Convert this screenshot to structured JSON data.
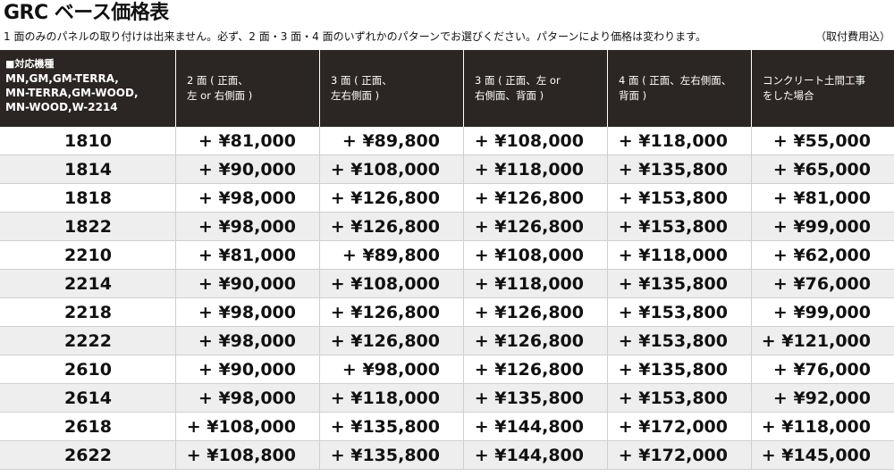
{
  "title": "GRC ベース価格表",
  "note": "1 面のみのパネルの取り付けは出来ません。必ず、2 面・3 面・4 面のいずれかのパターンでお選びください。パターンにより価格は変わります。",
  "note_right": "（取付費用込）",
  "headers": [
    [
      "■対応機種",
      "MN,GM,GM-TERRA,",
      "MN-TERRA,GM-WOOD,",
      "MN-WOOD,W-2214"
    ],
    [
      "2 面 ( 正面、",
      "左 or 右側面 )"
    ],
    [
      "3 面 ( 正面、",
      "左右側面 )"
    ],
    [
      "3 面 ( 正面、左 or",
      "右側面、背面 )"
    ],
    [
      "4 面 ( 正面、左右側面、",
      "背面 )"
    ],
    [
      "コンクリート土間工事",
      "をした場合"
    ]
  ],
  "rows": [
    [
      "1810",
      "+ ¥81,000",
      "+ ¥89,800",
      "+ ¥108,000",
      "+ ¥118,000",
      "+ ¥55,000"
    ],
    [
      "1814",
      "+ ¥90,000",
      "+ ¥108,000",
      "+ ¥118,000",
      "+ ¥135,800",
      "+ ¥65,000"
    ],
    [
      "1818",
      "+ ¥98,000",
      "+ ¥126,800",
      "+ ¥126,800",
      "+ ¥153,800",
      "+ ¥81,000"
    ],
    [
      "1822",
      "+ ¥98,000",
      "+ ¥126,800",
      "+ ¥126,800",
      "+ ¥153,800",
      "+ ¥99,000"
    ],
    [
      "2210",
      "+ ¥81,000",
      "+ ¥89,800",
      "+ ¥108,000",
      "+ ¥118,000",
      "+ ¥62,000"
    ],
    [
      "2214",
      "+ ¥90,000",
      "+ ¥108,000",
      "+ ¥118,000",
      "+ ¥135,800",
      "+ ¥76,000"
    ],
    [
      "2218",
      "+ ¥98,000",
      "+ ¥126,800",
      "+ ¥126,800",
      "+ ¥153,800",
      "+ ¥99,000"
    ],
    [
      "2222",
      "+ ¥98,000",
      "+ ¥126,800",
      "+ ¥126,800",
      "+ ¥153,800",
      "+ ¥121,000"
    ],
    [
      "2610",
      "+ ¥90,000",
      "+ ¥98,000",
      "+ ¥126,800",
      "+ ¥135,800",
      "+ ¥76,000"
    ],
    [
      "2614",
      "+ ¥98,000",
      "+ ¥118,000",
      "+ ¥135,800",
      "+ ¥153,800",
      "+ ¥92,000"
    ],
    [
      "2618",
      "+ ¥108,000",
      "+ ¥135,800",
      "+ ¥144,800",
      "+ ¥172,000",
      "+ ¥118,000"
    ],
    [
      "2622",
      "+ ¥108,800",
      "+ ¥135,800",
      "+ ¥144,800",
      "+ ¥172,000",
      "+ ¥145,000"
    ]
  ]
}
